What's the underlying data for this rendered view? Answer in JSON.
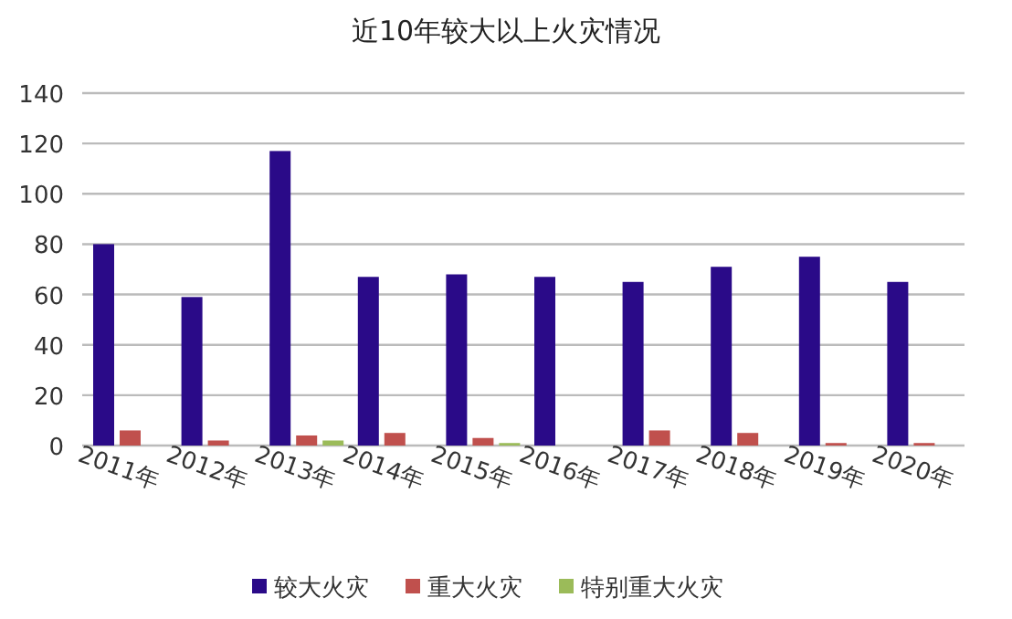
{
  "chart_data": {
    "type": "bar",
    "title": "近10年较大以上火灾情况",
    "categories": [
      "2011年",
      "2012年",
      "2013年",
      "2014年",
      "2015年",
      "2016年",
      "2017年",
      "2018年",
      "2019年",
      "2020年"
    ],
    "series": [
      {
        "name": "较大火灾",
        "color": "#2a0a88",
        "values": [
          80,
          59,
          117,
          67,
          68,
          67,
          65,
          71,
          75,
          65
        ]
      },
      {
        "name": "重大火灾",
        "color": "#c0504d",
        "values": [
          6,
          2,
          4,
          5,
          3,
          0,
          6,
          5,
          1,
          1
        ]
      },
      {
        "name": "特别重大火灾",
        "color": "#9bbb59",
        "values": [
          0,
          0,
          2,
          0,
          1,
          0,
          0,
          0,
          0,
          0
        ]
      }
    ],
    "ylim": [
      0,
      140
    ],
    "yticks": [
      0,
      20,
      40,
      60,
      80,
      100,
      120,
      140
    ],
    "grid": "y",
    "legend": "bottom"
  }
}
